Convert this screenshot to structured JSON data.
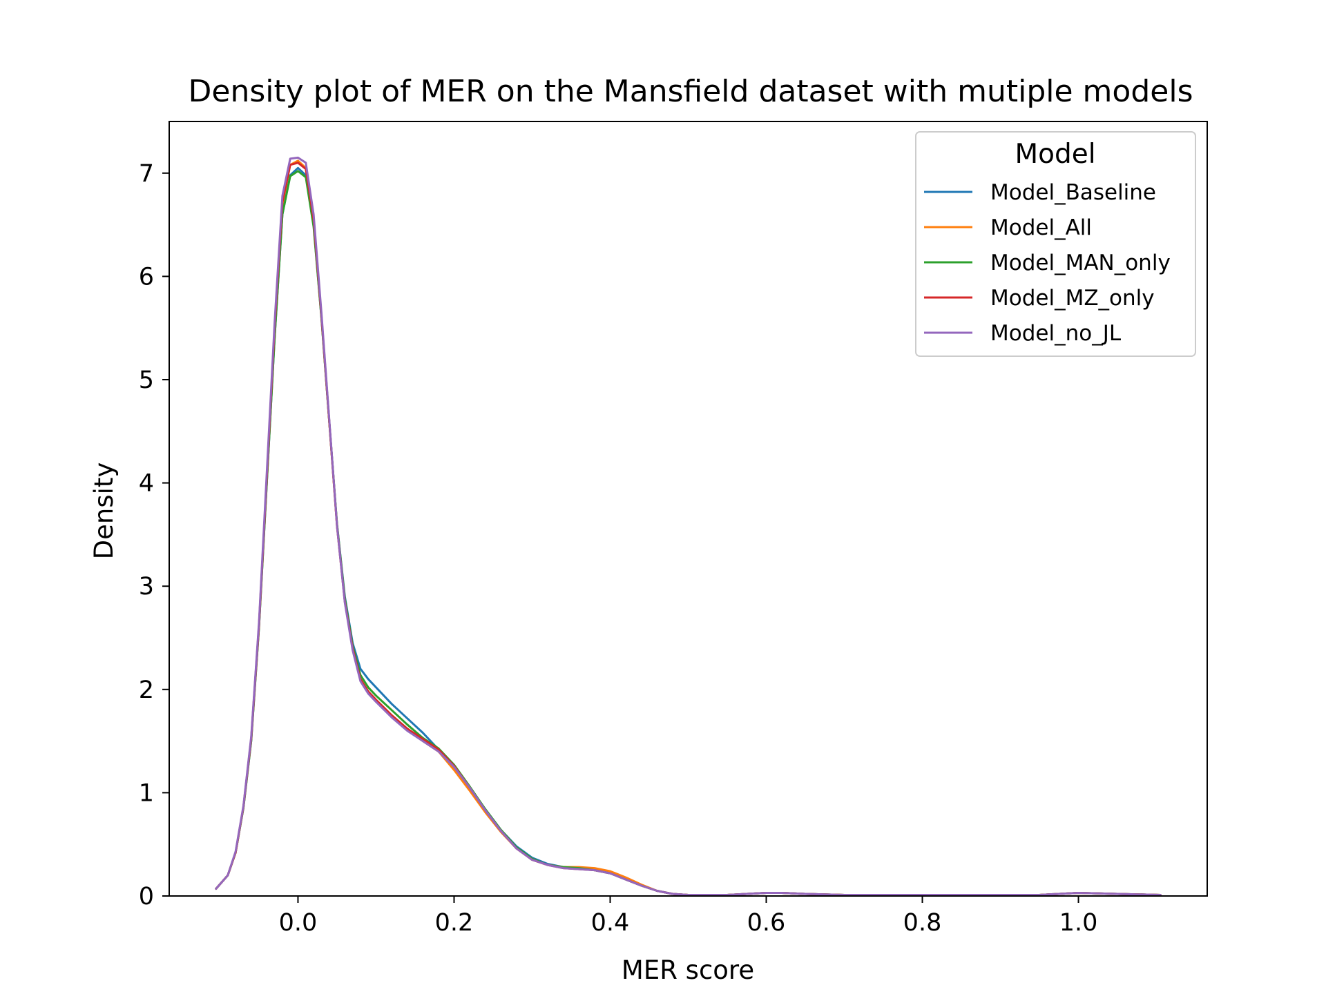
{
  "chart_data": {
    "type": "line",
    "title": "Density plot of MER on the Mansfield dataset with mutiple models",
    "xlabel": "MER score",
    "ylabel": "Density",
    "xlim": [
      -0.165,
      1.165
    ],
    "ylim": [
      0,
      7.5
    ],
    "xticks": [
      0.0,
      0.2,
      0.4,
      0.6,
      0.8,
      1.0
    ],
    "xtick_labels": [
      "0.0",
      "0.2",
      "0.4",
      "0.6",
      "0.8",
      "1.0"
    ],
    "yticks": [
      0,
      1,
      2,
      3,
      4,
      5,
      6,
      7
    ],
    "ytick_labels": [
      "0",
      "1",
      "2",
      "3",
      "4",
      "5",
      "6",
      "7"
    ],
    "grid": false,
    "legend": {
      "title": "Model",
      "position": "top-right"
    },
    "series": [
      {
        "name": "Model_Baseline",
        "color": "#1f77b4",
        "x": [
          -0.105,
          -0.09,
          -0.08,
          -0.07,
          -0.06,
          -0.05,
          -0.04,
          -0.03,
          -0.02,
          -0.01,
          0.0,
          0.01,
          0.02,
          0.03,
          0.04,
          0.05,
          0.06,
          0.07,
          0.08,
          0.09,
          0.1,
          0.12,
          0.14,
          0.16,
          0.18,
          0.2,
          0.22,
          0.24,
          0.26,
          0.28,
          0.3,
          0.32,
          0.34,
          0.36,
          0.38,
          0.4,
          0.42,
          0.44,
          0.46,
          0.48,
          0.5,
          0.55,
          0.6,
          0.62,
          0.65,
          0.7,
          0.8,
          0.9,
          0.95,
          1.0,
          1.05,
          1.105
        ],
        "y": [
          0.07,
          0.2,
          0.42,
          0.85,
          1.5,
          2.6,
          4.0,
          5.4,
          6.6,
          6.98,
          7.05,
          6.98,
          6.5,
          5.6,
          4.6,
          3.6,
          2.9,
          2.45,
          2.2,
          2.1,
          2.02,
          1.86,
          1.72,
          1.58,
          1.42,
          1.25,
          1.05,
          0.84,
          0.64,
          0.48,
          0.37,
          0.31,
          0.28,
          0.27,
          0.25,
          0.22,
          0.16,
          0.1,
          0.05,
          0.02,
          0.01,
          0.01,
          0.03,
          0.03,
          0.02,
          0.01,
          0.01,
          0.01,
          0.01,
          0.03,
          0.02,
          0.01
        ]
      },
      {
        "name": "Model_All",
        "color": "#ff7f0e",
        "x": [
          -0.105,
          -0.09,
          -0.08,
          -0.07,
          -0.06,
          -0.05,
          -0.04,
          -0.03,
          -0.02,
          -0.01,
          0.0,
          0.01,
          0.02,
          0.03,
          0.04,
          0.05,
          0.06,
          0.07,
          0.08,
          0.09,
          0.1,
          0.12,
          0.14,
          0.16,
          0.18,
          0.2,
          0.22,
          0.24,
          0.26,
          0.28,
          0.3,
          0.32,
          0.34,
          0.36,
          0.38,
          0.4,
          0.42,
          0.44,
          0.46,
          0.48,
          0.5,
          0.55,
          0.6,
          0.62,
          0.65,
          0.7,
          0.8,
          0.9,
          0.95,
          1.0,
          1.05,
          1.105
        ],
        "y": [
          0.07,
          0.2,
          0.42,
          0.86,
          1.52,
          2.62,
          4.05,
          5.5,
          6.7,
          7.08,
          7.12,
          7.05,
          6.55,
          5.62,
          4.6,
          3.58,
          2.85,
          2.4,
          2.1,
          1.98,
          1.9,
          1.75,
          1.62,
          1.5,
          1.4,
          1.22,
          1.02,
          0.81,
          0.62,
          0.46,
          0.35,
          0.3,
          0.28,
          0.28,
          0.27,
          0.24,
          0.18,
          0.11,
          0.05,
          0.02,
          0.01,
          0.01,
          0.03,
          0.03,
          0.02,
          0.01,
          0.01,
          0.01,
          0.01,
          0.03,
          0.02,
          0.01
        ]
      },
      {
        "name": "Model_MAN_only",
        "color": "#2ca02c",
        "x": [
          -0.105,
          -0.09,
          -0.08,
          -0.07,
          -0.06,
          -0.05,
          -0.04,
          -0.03,
          -0.02,
          -0.01,
          0.0,
          0.01,
          0.02,
          0.03,
          0.04,
          0.05,
          0.06,
          0.07,
          0.08,
          0.09,
          0.1,
          0.12,
          0.14,
          0.16,
          0.18,
          0.2,
          0.22,
          0.24,
          0.26,
          0.28,
          0.3,
          0.32,
          0.34,
          0.36,
          0.38,
          0.4,
          0.42,
          0.44,
          0.46,
          0.48,
          0.5,
          0.55,
          0.6,
          0.62,
          0.65,
          0.7,
          0.8,
          0.9,
          0.95,
          1.0,
          1.05,
          1.105
        ],
        "y": [
          0.07,
          0.2,
          0.42,
          0.85,
          1.5,
          2.6,
          4.0,
          5.4,
          6.6,
          6.97,
          7.02,
          6.96,
          6.48,
          5.6,
          4.6,
          3.6,
          2.88,
          2.42,
          2.14,
          2.02,
          1.94,
          1.8,
          1.66,
          1.53,
          1.43,
          1.27,
          1.06,
          0.84,
          0.64,
          0.47,
          0.36,
          0.3,
          0.28,
          0.27,
          0.25,
          0.22,
          0.16,
          0.1,
          0.05,
          0.02,
          0.01,
          0.01,
          0.03,
          0.03,
          0.02,
          0.01,
          0.01,
          0.01,
          0.01,
          0.03,
          0.02,
          0.01
        ]
      },
      {
        "name": "Model_MZ_only",
        "color": "#d62728",
        "x": [
          -0.105,
          -0.09,
          -0.08,
          -0.07,
          -0.06,
          -0.05,
          -0.04,
          -0.03,
          -0.02,
          -0.01,
          0.0,
          0.01,
          0.02,
          0.03,
          0.04,
          0.05,
          0.06,
          0.07,
          0.08,
          0.09,
          0.1,
          0.12,
          0.14,
          0.16,
          0.18,
          0.2,
          0.22,
          0.24,
          0.26,
          0.28,
          0.3,
          0.32,
          0.34,
          0.36,
          0.38,
          0.4,
          0.42,
          0.44,
          0.46,
          0.48,
          0.5,
          0.55,
          0.6,
          0.62,
          0.65,
          0.7,
          0.8,
          0.9,
          0.95,
          1.0,
          1.05,
          1.105
        ],
        "y": [
          0.07,
          0.2,
          0.42,
          0.86,
          1.52,
          2.62,
          4.05,
          5.5,
          6.72,
          7.08,
          7.1,
          7.04,
          6.55,
          5.62,
          4.6,
          3.58,
          2.85,
          2.4,
          2.1,
          1.98,
          1.9,
          1.75,
          1.62,
          1.52,
          1.42,
          1.26,
          1.05,
          0.83,
          0.63,
          0.46,
          0.35,
          0.3,
          0.27,
          0.26,
          0.25,
          0.22,
          0.16,
          0.1,
          0.05,
          0.02,
          0.01,
          0.01,
          0.03,
          0.03,
          0.02,
          0.01,
          0.01,
          0.01,
          0.01,
          0.03,
          0.02,
          0.01
        ]
      },
      {
        "name": "Model_no_JL",
        "color": "#9467bd",
        "x": [
          -0.105,
          -0.09,
          -0.08,
          -0.07,
          -0.06,
          -0.05,
          -0.04,
          -0.03,
          -0.02,
          -0.01,
          0.0,
          0.01,
          0.02,
          0.03,
          0.04,
          0.05,
          0.06,
          0.07,
          0.08,
          0.09,
          0.1,
          0.12,
          0.14,
          0.16,
          0.18,
          0.2,
          0.22,
          0.24,
          0.26,
          0.28,
          0.3,
          0.32,
          0.34,
          0.36,
          0.38,
          0.4,
          0.42,
          0.44,
          0.46,
          0.48,
          0.5,
          0.55,
          0.6,
          0.62,
          0.65,
          0.7,
          0.8,
          0.9,
          0.95,
          1.0,
          1.05,
          1.105
        ],
        "y": [
          0.07,
          0.2,
          0.43,
          0.87,
          1.54,
          2.65,
          4.1,
          5.55,
          6.78,
          7.14,
          7.15,
          7.1,
          6.6,
          5.65,
          4.62,
          3.58,
          2.84,
          2.38,
          2.08,
          1.96,
          1.88,
          1.73,
          1.6,
          1.5,
          1.4,
          1.25,
          1.05,
          0.83,
          0.63,
          0.46,
          0.35,
          0.3,
          0.27,
          0.26,
          0.25,
          0.22,
          0.16,
          0.1,
          0.05,
          0.02,
          0.01,
          0.01,
          0.03,
          0.03,
          0.02,
          0.01,
          0.01,
          0.01,
          0.01,
          0.03,
          0.02,
          0.01
        ]
      }
    ]
  }
}
